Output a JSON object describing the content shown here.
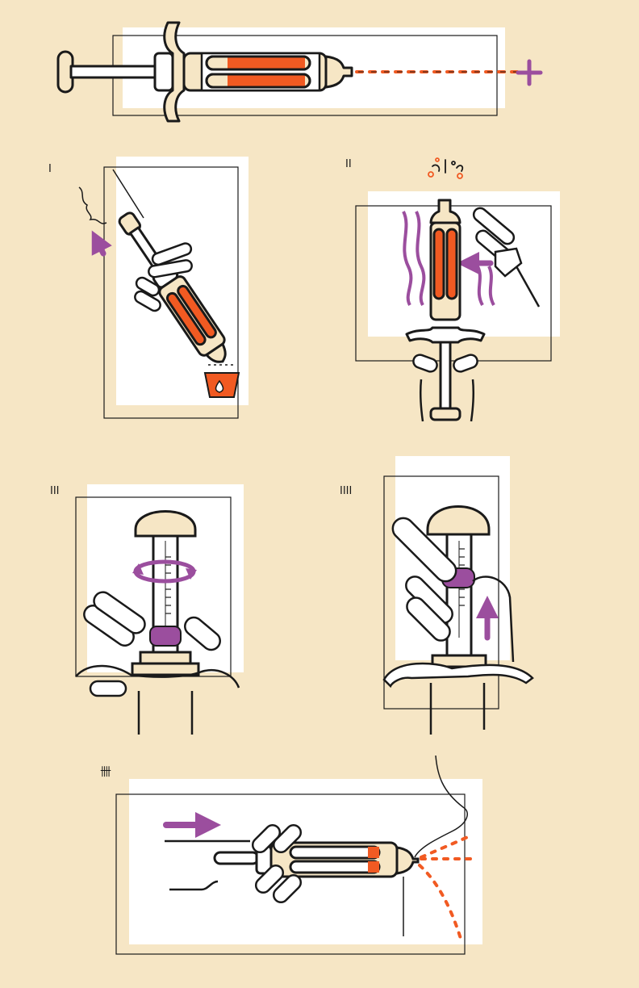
{
  "step_labels": [
    "I",
    "II",
    "III",
    "IIII",
    "卌"
  ],
  "colors": {
    "background": "#F6E6C5",
    "card": "#FFFFFF",
    "ink": "#1A1A1A",
    "orange": "#F15A22",
    "purple": "#9B4E9E",
    "cream": "#F6E6C5"
  }
}
